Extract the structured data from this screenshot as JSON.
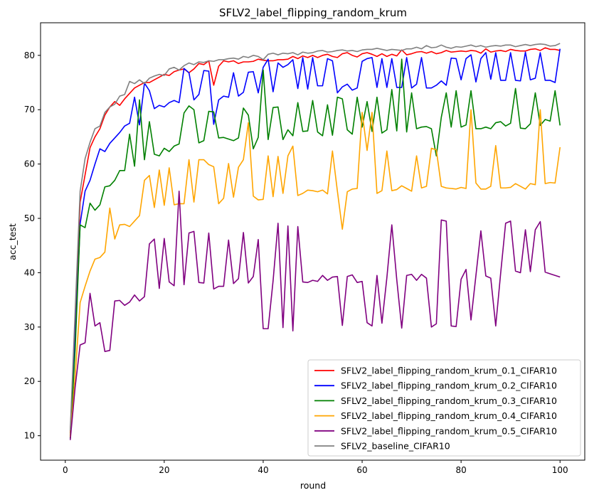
{
  "chart_data": {
    "type": "line",
    "title": "SFLV2_label_flipping_random_krum",
    "xlabel": "round",
    "ylabel": "acc_test",
    "xlim": [
      -5,
      105
    ],
    "ylim": [
      5.5,
      86
    ],
    "xticks": [
      0,
      20,
      40,
      60,
      80,
      100
    ],
    "yticks": [
      10,
      20,
      30,
      40,
      50,
      60,
      70,
      80
    ],
    "grid": false,
    "legend_position": "lower-right",
    "x": [
      1,
      2,
      3,
      4,
      5,
      6,
      7,
      8,
      9,
      10,
      11,
      12,
      13,
      14,
      15,
      16,
      17,
      18,
      19,
      20,
      21,
      22,
      23,
      24,
      25,
      26,
      27,
      28,
      29,
      30,
      31,
      32,
      33,
      34,
      35,
      36,
      37,
      38,
      39,
      40,
      41,
      42,
      43,
      44,
      45,
      46,
      47,
      48,
      49,
      50,
      51,
      52,
      53,
      54,
      55,
      56,
      57,
      58,
      59,
      60,
      61,
      62,
      63,
      64,
      65,
      66,
      67,
      68,
      69,
      70,
      71,
      72,
      73,
      74,
      75,
      76,
      77,
      78,
      79,
      80,
      81,
      82,
      83,
      84,
      85,
      86,
      87,
      88,
      89,
      90,
      91,
      92,
      93,
      94,
      95,
      96,
      97,
      98,
      99,
      100
    ],
    "series": [
      {
        "name": "SFLV2_label_flipping_random_krum_0.1_CIFAR10",
        "color": "#ff0000",
        "values": [
          10.5,
          30,
          53,
          58,
          63,
          65,
          66.5,
          69,
          70.5,
          71.5,
          70.8,
          72,
          73,
          74,
          74.5,
          75,
          75,
          75.5,
          76,
          76.5,
          76.3,
          77,
          77.3,
          77.5,
          76.8,
          77.5,
          78.5,
          78.3,
          79,
          74.5,
          78,
          79,
          78.8,
          79,
          78.5,
          78.8,
          78.8,
          78.9,
          79.3,
          79.1,
          79,
          79,
          79.2,
          79.2,
          79.3,
          79.8,
          79.4,
          79.9,
          79.6,
          80,
          79.6,
          80,
          80.2,
          79.8,
          79.6,
          80.3,
          80.5,
          80,
          79.7,
          80.3,
          80.5,
          80.2,
          79.8,
          80.3,
          79.8,
          80.2,
          79.9,
          81,
          80.1,
          80.3,
          80.6,
          80.7,
          80.4,
          80.7,
          80.3,
          80.5,
          80.9,
          80.6,
          80.7,
          80.8,
          80.7,
          80.9,
          80.8,
          80.4,
          81.2,
          80.6,
          80.8,
          80.9,
          80.7,
          81.1,
          80.9,
          80.8,
          80.8,
          81.1,
          81.2,
          80.9,
          81.4,
          81.1,
          81.1,
          80.9
        ]
      },
      {
        "name": "SFLV2_label_flipping_random_krum_0.2_CIFAR10",
        "color": "#0000ff",
        "values": [
          10,
          28,
          49,
          55,
          57,
          60,
          62.8,
          62.3,
          63.8,
          64.8,
          65.8,
          67,
          67.5,
          72.3,
          67.2,
          74.9,
          73.5,
          70.2,
          70.8,
          70.5,
          71.3,
          71.7,
          71.3,
          77.6,
          76.8,
          71.8,
          72.8,
          77.2,
          77.1,
          67.3,
          71.8,
          72.5,
          72.3,
          76.8,
          72.5,
          73.2,
          76.9,
          77,
          73.1,
          77.8,
          79.3,
          73.3,
          78.6,
          77.8,
          78.3,
          79.2,
          73.9,
          79.6,
          73.8,
          79.6,
          74.4,
          74.4,
          79.4,
          79,
          73.1,
          74.2,
          74.7,
          73.6,
          74,
          78.9,
          79.4,
          79.6,
          74.1,
          79.4,
          74.1,
          79.4,
          74.1,
          74.1,
          79.6,
          74,
          74.7,
          79.6,
          74,
          74,
          74.5,
          75.3,
          74.5,
          79.5,
          79.4,
          75.5,
          79.4,
          80.1,
          75.1,
          79.4,
          80.5,
          75.6,
          80.5,
          75.4,
          75.4,
          80.5,
          75.4,
          75.3,
          80.6,
          75.5,
          75.8,
          80.5,
          75.4,
          75.4,
          75,
          81.2
        ]
      },
      {
        "name": "SFLV2_label_flipping_random_krum_0.3_CIFAR10",
        "color": "#008000",
        "values": [
          9.5,
          26,
          48.8,
          48.3,
          52.8,
          51.5,
          52.5,
          55.8,
          56,
          57,
          58.8,
          58.8,
          65.5,
          59.6,
          71.8,
          60.8,
          67.8,
          61.8,
          61.5,
          62.9,
          62.3,
          63.3,
          63.7,
          69.4,
          70.7,
          70,
          63.9,
          64.3,
          69.7,
          69.6,
          64.8,
          64.9,
          64.6,
          64.3,
          64.8,
          70.3,
          69,
          62.8,
          64.9,
          77.3,
          64.5,
          70.4,
          70.5,
          64.5,
          66.3,
          65.2,
          71.3,
          66,
          66.1,
          71.7,
          65.9,
          65.2,
          70.9,
          65.3,
          72.3,
          72,
          66.3,
          65.5,
          72.3,
          66.8,
          71.5,
          66,
          72.3,
          65.7,
          66.3,
          73.7,
          66.1,
          79.3,
          65.9,
          73.1,
          66.5,
          66.8,
          66.9,
          66.5,
          61.5,
          68.6,
          73.1,
          66.8,
          73.5,
          66.8,
          67.2,
          73.5,
          66.5,
          66.5,
          66.8,
          66.5,
          67.6,
          67.8,
          67,
          67.5,
          73.9,
          66.6,
          66.5,
          67.4,
          73.1,
          67.1,
          68.2,
          67.9,
          73.5,
          67.1
        ]
      },
      {
        "name": "SFLV2_label_flipping_random_krum_0.4_CIFAR10",
        "color": "#ffa500",
        "values": [
          9.8,
          21,
          34.5,
          37.5,
          40.3,
          42.5,
          42.8,
          43.8,
          51.9,
          46.2,
          48.8,
          48.9,
          48.5,
          49.5,
          50.5,
          57,
          57.9,
          52,
          58.9,
          52.4,
          59.3,
          52.5,
          52.7,
          52.7,
          60.8,
          53,
          60.8,
          60.8,
          59.9,
          59.5,
          52.7,
          53.7,
          60.1,
          53.9,
          59.4,
          60.8,
          67.6,
          54.1,
          53.4,
          53.5,
          61.5,
          54,
          61.4,
          54.6,
          61.5,
          63.3,
          54.2,
          54.6,
          55.2,
          55.1,
          54.9,
          55.2,
          54.5,
          62.4,
          55,
          48,
          54.9,
          55.4,
          55.5,
          69.5,
          62.5,
          69.5,
          54.6,
          55.1,
          62.4,
          55.1,
          55.3,
          56,
          55.5,
          55,
          61.5,
          55.6,
          55.9,
          62.9,
          62.6,
          55.9,
          55.6,
          55.5,
          55.4,
          55.7,
          55.5,
          70,
          56.5,
          55.4,
          55.4,
          55.9,
          63.4,
          55.6,
          55.6,
          55.7,
          56.4,
          55.9,
          55.4,
          56.4,
          56.2,
          70,
          56.4,
          56.6,
          56.5,
          63.1
        ]
      },
      {
        "name": "SFLV2_label_flipping_random_krum_0.5_CIFAR10",
        "color": "#800080",
        "values": [
          9.2,
          19,
          26.7,
          27.1,
          36.2,
          30.2,
          30.8,
          25.5,
          25.7,
          34.8,
          34.9,
          34,
          34.6,
          35.9,
          34.8,
          35.6,
          45.3,
          46.2,
          37.1,
          46.3,
          38.3,
          37.6,
          55,
          37.8,
          47.3,
          47.6,
          38.2,
          38.1,
          47.3,
          37,
          37.5,
          37.5,
          46,
          38,
          38.9,
          47.4,
          38.1,
          39.3,
          46.1,
          29.7,
          29.7,
          38.5,
          49.1,
          29.9,
          48.6,
          29.3,
          48.5,
          38.3,
          38.2,
          38.6,
          38.4,
          39.5,
          38.6,
          39.2,
          39.3,
          30.3,
          39.3,
          39.6,
          38.2,
          38.4,
          30.8,
          30.2,
          39.5,
          30.7,
          39.1,
          48.8,
          38.7,
          29.8,
          39.5,
          39.7,
          38.6,
          39.7,
          39,
          30,
          30.6,
          49.7,
          49.5,
          30.2,
          30.1,
          38.8,
          40.6,
          31.3,
          39.5,
          47.7,
          39.4,
          39,
          30.2,
          39.9,
          49.1,
          49.5,
          40.3,
          40,
          47.9,
          40.2,
          47.9,
          49.4,
          40.1,
          39.8,
          39.5,
          39.2
        ]
      },
      {
        "name": "SFLV2_baseline_CIFAR10",
        "color": "#808080",
        "values": [
          11,
          33,
          55,
          61,
          64,
          66.5,
          67,
          69.5,
          70.5,
          71,
          72.5,
          72.8,
          75.2,
          74.8,
          75.5,
          74.8,
          75.8,
          76.2,
          76.5,
          76.3,
          77.5,
          77.8,
          77.3,
          78.1,
          78.6,
          78.3,
          78.8,
          78.7,
          79,
          78.9,
          79.2,
          79.2,
          79.4,
          79.5,
          79.3,
          79.8,
          79.6,
          80,
          79.8,
          79.2,
          80.2,
          80.4,
          80.1,
          80.4,
          80.3,
          80.5,
          80.1,
          80.6,
          80.4,
          80.5,
          80.8,
          80.9,
          80.6,
          80.7,
          80.9,
          81,
          80.8,
          80.9,
          80.7,
          81,
          81.1,
          81.1,
          81.3,
          81.1,
          80.9,
          81.1,
          81,
          80.9,
          81.2,
          81.2,
          81.5,
          81.2,
          81.8,
          81.4,
          81.5,
          81.9,
          81.5,
          81.3,
          81.6,
          81.5,
          81.7,
          81.9,
          81.6,
          81.8,
          81.5,
          81.7,
          81.8,
          81.7,
          81.9,
          81.9,
          81.6,
          81.8,
          82,
          81.8,
          82,
          82.1,
          82,
          81.7,
          81.8,
          82.2
        ]
      }
    ]
  }
}
